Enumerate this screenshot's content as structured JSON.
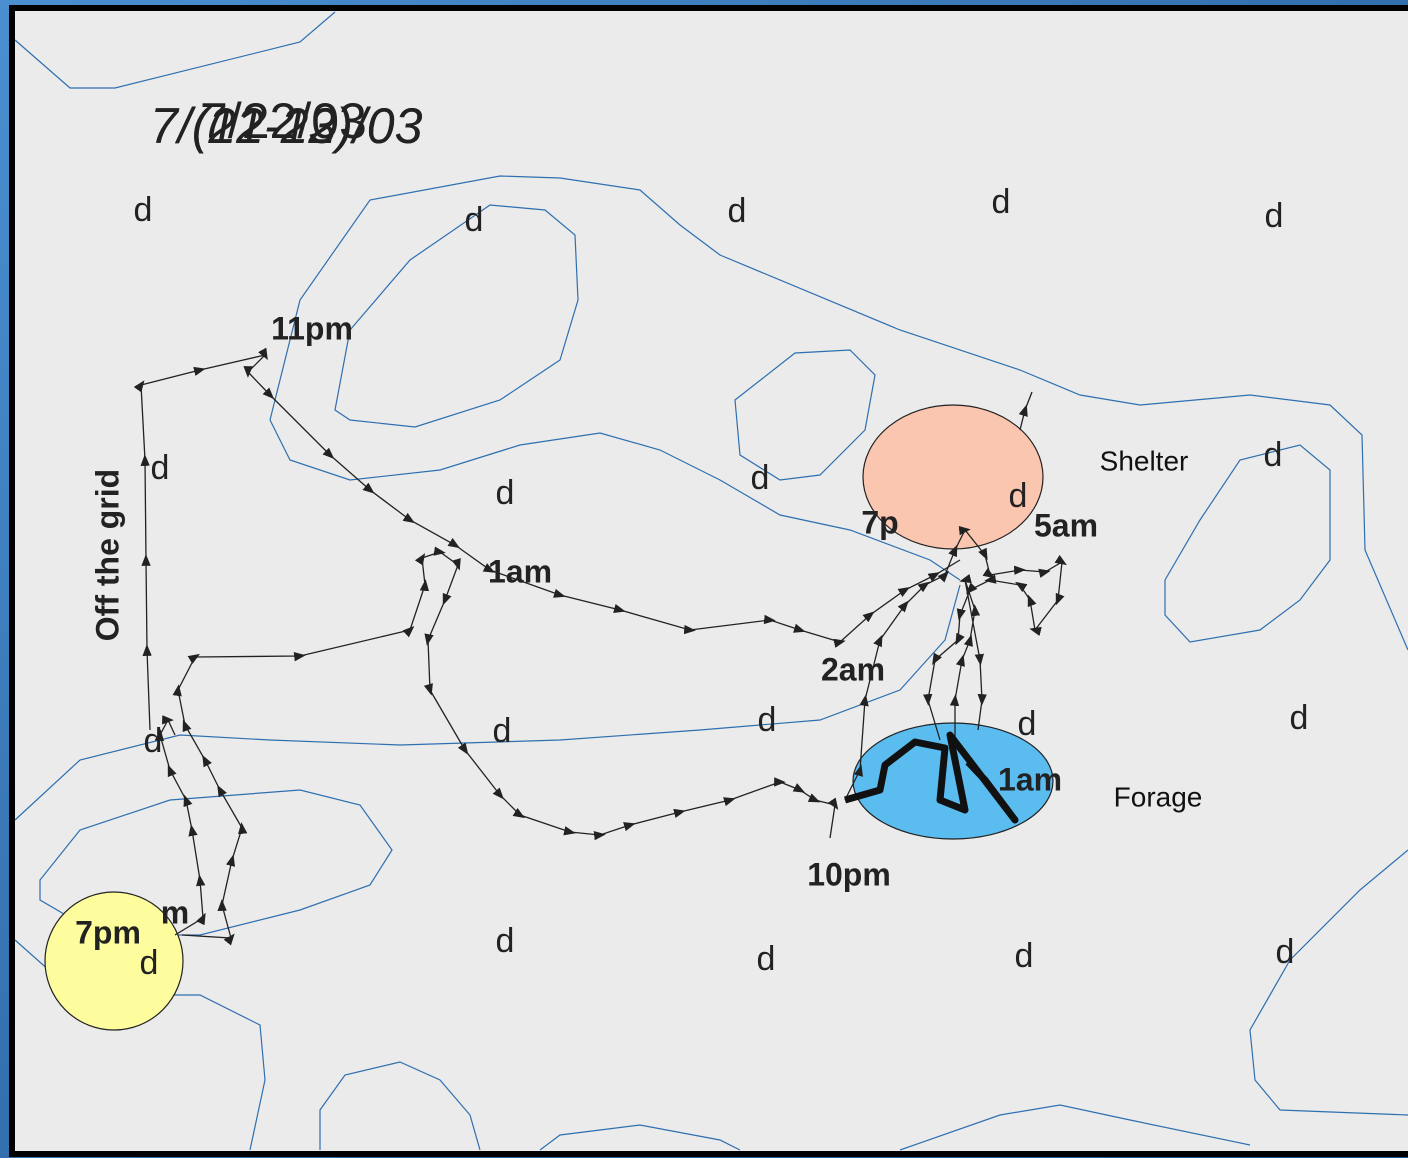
{
  "header": {
    "titles": [
      "7/(21-22)/03",
      "7/(12-13)/03",
      "7/22/03"
    ]
  },
  "map": {
    "d_markers": [
      "d",
      "d",
      "d",
      "d",
      "d",
      "d",
      "d",
      "d",
      "d",
      "d",
      "d",
      "d",
      "d",
      "d",
      "d",
      "d",
      "d",
      "d",
      "d",
      "d"
    ],
    "time_labels": [
      "11pm",
      "1am",
      "2am",
      "7p",
      "5am",
      "1am",
      "10pm",
      "7pm",
      "m"
    ],
    "zones": {
      "shelter": "Shelter",
      "forage": "Forage",
      "off_grid": "Off the grid"
    }
  }
}
